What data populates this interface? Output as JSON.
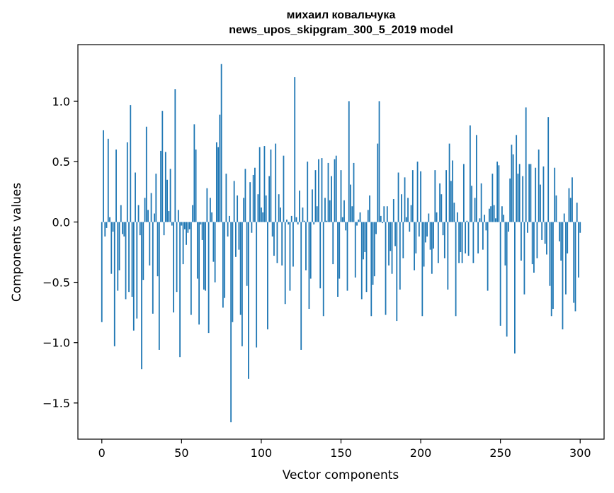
{
  "header": {
    "title_line1": "михаил ковальчука",
    "title_line2": "news_upos_skipgram_300_5_2019 model"
  },
  "chart_data": {
    "type": "bar",
    "title": "михаил ковальчука\nnews_upos_skipgram_300_5_2019 model",
    "xlabel": "Vector components",
    "ylabel": "Components values",
    "xlim": [
      -15,
      315
    ],
    "ylim": [
      -1.8,
      1.47
    ],
    "xticks": [
      0,
      50,
      100,
      150,
      200,
      250,
      300
    ],
    "yticks": [
      -1.5,
      -1.0,
      -0.5,
      0.0,
      0.5,
      1.0
    ],
    "ytick_labels": [
      "−1.5",
      "−1.0",
      "−0.5",
      "0.0",
      "0.5",
      "1.0"
    ],
    "bar_color": "#1f77b4",
    "grid": false,
    "series": [
      {
        "x_start": 0,
        "values": [
          -0.83,
          0.76,
          -0.12,
          -0.05,
          0.69,
          0.04,
          -0.43,
          -0.08,
          -1.03,
          0.6,
          -0.57,
          -0.4,
          0.14,
          -0.1,
          -0.12,
          -0.64,
          0.66,
          -0.58,
          0.97,
          -0.62,
          -0.9,
          0.41,
          -0.8,
          0.14,
          -0.11,
          -1.22,
          -0.48,
          0.2,
          0.79,
          0.1,
          -0.36,
          0.24,
          -0.76,
          0.07,
          0.4,
          -0.45,
          -1.06,
          0.59,
          0.92,
          -0.11,
          0.58,
          0.35,
          0.09,
          0.44,
          -0.03,
          -0.75,
          1.1,
          -0.58,
          0.1,
          -1.12,
          -0.03,
          -0.35,
          -0.06,
          -0.19,
          -0.09,
          -0.06,
          -0.77,
          0.14,
          0.81,
          0.6,
          -0.47,
          -0.85,
          -0.02,
          -0.15,
          -0.56,
          -0.57,
          0.28,
          -0.92,
          0.2,
          0.08,
          -0.33,
          -0.5,
          0.66,
          0.62,
          0.89,
          1.31,
          -0.71,
          -0.63,
          0.4,
          -0.12,
          0.05,
          -1.66,
          -0.83,
          0.34,
          -0.29,
          0.22,
          -0.23,
          -0.77,
          -1.03,
          0.2,
          0.44,
          -0.53,
          -1.3,
          0.33,
          -0.09,
          0.39,
          0.45,
          -1.04,
          0.23,
          0.62,
          0.12,
          0.08,
          0.63,
          0.22,
          -0.89,
          0.38,
          0.6,
          -0.12,
          -0.28,
          0.65,
          -0.34,
          0.23,
          0.12,
          -0.36,
          0.55,
          -0.68,
          0.02,
          -0.02,
          -0.57,
          0.05,
          -0.37,
          1.2,
          0.04,
          -0.02,
          0.26,
          -1.06,
          0.12,
          0.01,
          -0.4,
          0.5,
          -0.72,
          -0.47,
          0.27,
          -0.02,
          0.43,
          0.13,
          0.52,
          -0.55,
          0.53,
          -0.78,
          0.2,
          0.01,
          0.49,
          0.18,
          0.38,
          -0.35,
          0.52,
          0.55,
          -0.62,
          -0.47,
          0.43,
          0.04,
          0.18,
          -0.07,
          -0.57,
          1.0,
          0.31,
          0.13,
          0.49,
          -0.46,
          -0.03,
          0.02,
          0.08,
          -0.64,
          -0.31,
          -0.25,
          -0.58,
          0.1,
          0.22,
          -0.78,
          -0.52,
          -0.45,
          -0.1,
          0.65,
          1.0,
          0.05,
          -0.01,
          0.13,
          -0.77,
          0.13,
          -0.36,
          -0.24,
          -0.43,
          0.19,
          -0.2,
          -0.82,
          0.41,
          -0.56,
          0.23,
          -0.3,
          0.37,
          0.04,
          0.2,
          -0.08,
          0.14,
          0.43,
          -0.4,
          -0.26,
          0.5,
          -0.12,
          0.42,
          -0.78,
          -0.37,
          -0.17,
          -0.12,
          0.07,
          -0.23,
          -0.43,
          -0.22,
          0.43,
          0.08,
          -0.34,
          0.32,
          0.23,
          -0.11,
          -0.3,
          0.43,
          -0.56,
          0.65,
          0.34,
          0.51,
          0.16,
          -0.78,
          0.08,
          -0.34,
          -0.25,
          -0.34,
          0.48,
          -0.26,
          0.01,
          -0.28,
          0.8,
          0.3,
          -0.34,
          0.2,
          0.72,
          -0.26,
          0.03,
          0.32,
          -0.23,
          0.06,
          -0.07,
          -0.57,
          0.11,
          0.13,
          0.4,
          0.14,
          0.03,
          0.5,
          0.47,
          -0.86,
          0.13,
          0.06,
          -0.36,
          -0.95,
          -0.08,
          0.36,
          0.64,
          0.56,
          -1.09,
          0.72,
          0.4,
          0.48,
          -0.32,
          0.38,
          -0.6,
          0.95,
          -0.09,
          0.48,
          0.48,
          -0.35,
          -0.42,
          0.45,
          -0.3,
          0.6,
          0.31,
          -0.15,
          0.46,
          -0.18,
          -0.27,
          0.87,
          -0.53,
          -0.78,
          -0.72,
          0.45,
          0.22,
          0.0,
          -0.16,
          -0.32,
          -0.89,
          0.07,
          -0.6,
          -0.26,
          0.28,
          0.2,
          0.37,
          -0.67,
          -0.74,
          0.16,
          -0.46,
          -0.09
        ]
      }
    ]
  }
}
